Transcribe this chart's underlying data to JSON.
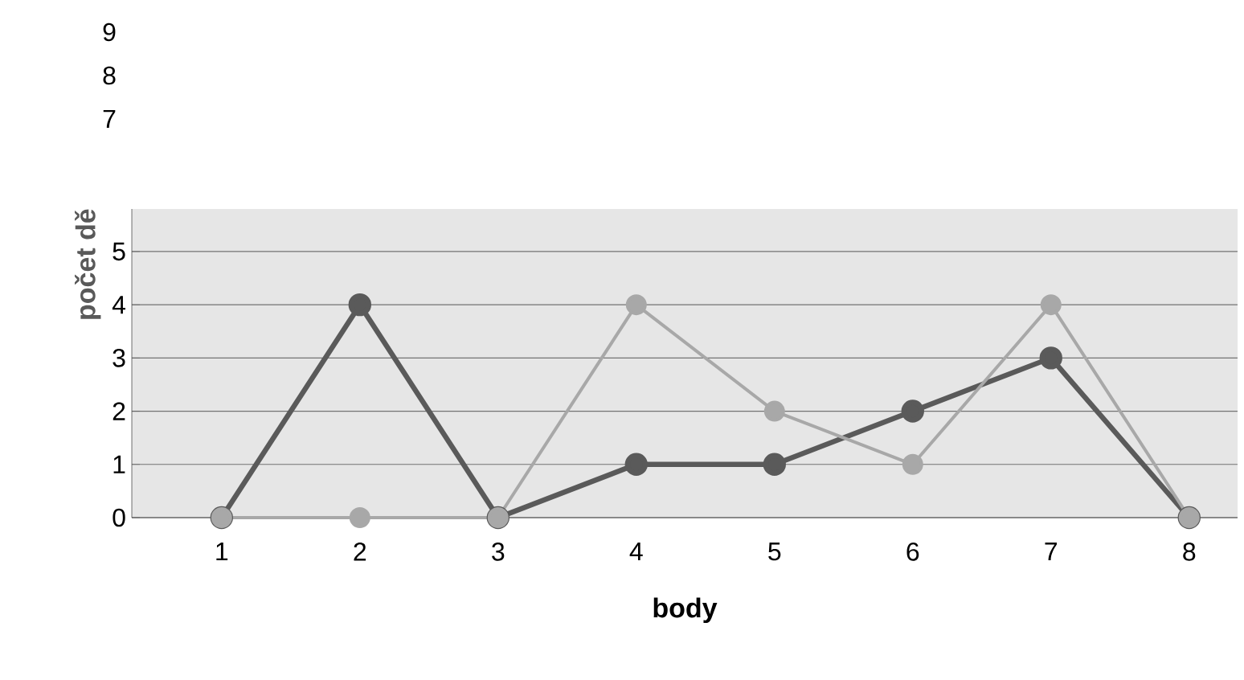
{
  "chart_data": {
    "type": "line",
    "xlabel": "body",
    "ylabel": "počet dě",
    "categories": [
      "1",
      "2",
      "3",
      "4",
      "5",
      "6",
      "7",
      "8"
    ],
    "series": [
      {
        "color": "#5a5a5a",
        "values": [
          0,
          4,
          0,
          1,
          1,
          2,
          3,
          0
        ]
      },
      {
        "color": "#a8a8a8",
        "values": [
          0,
          0,
          0,
          4,
          2,
          1,
          4,
          0
        ]
      }
    ],
    "ylim": [
      0,
      5.8
    ],
    "yticks": [
      0,
      1,
      2,
      3,
      4,
      5
    ],
    "grid": "y",
    "marker": "circle",
    "annotations": [
      "9",
      "8",
      "7"
    ]
  }
}
